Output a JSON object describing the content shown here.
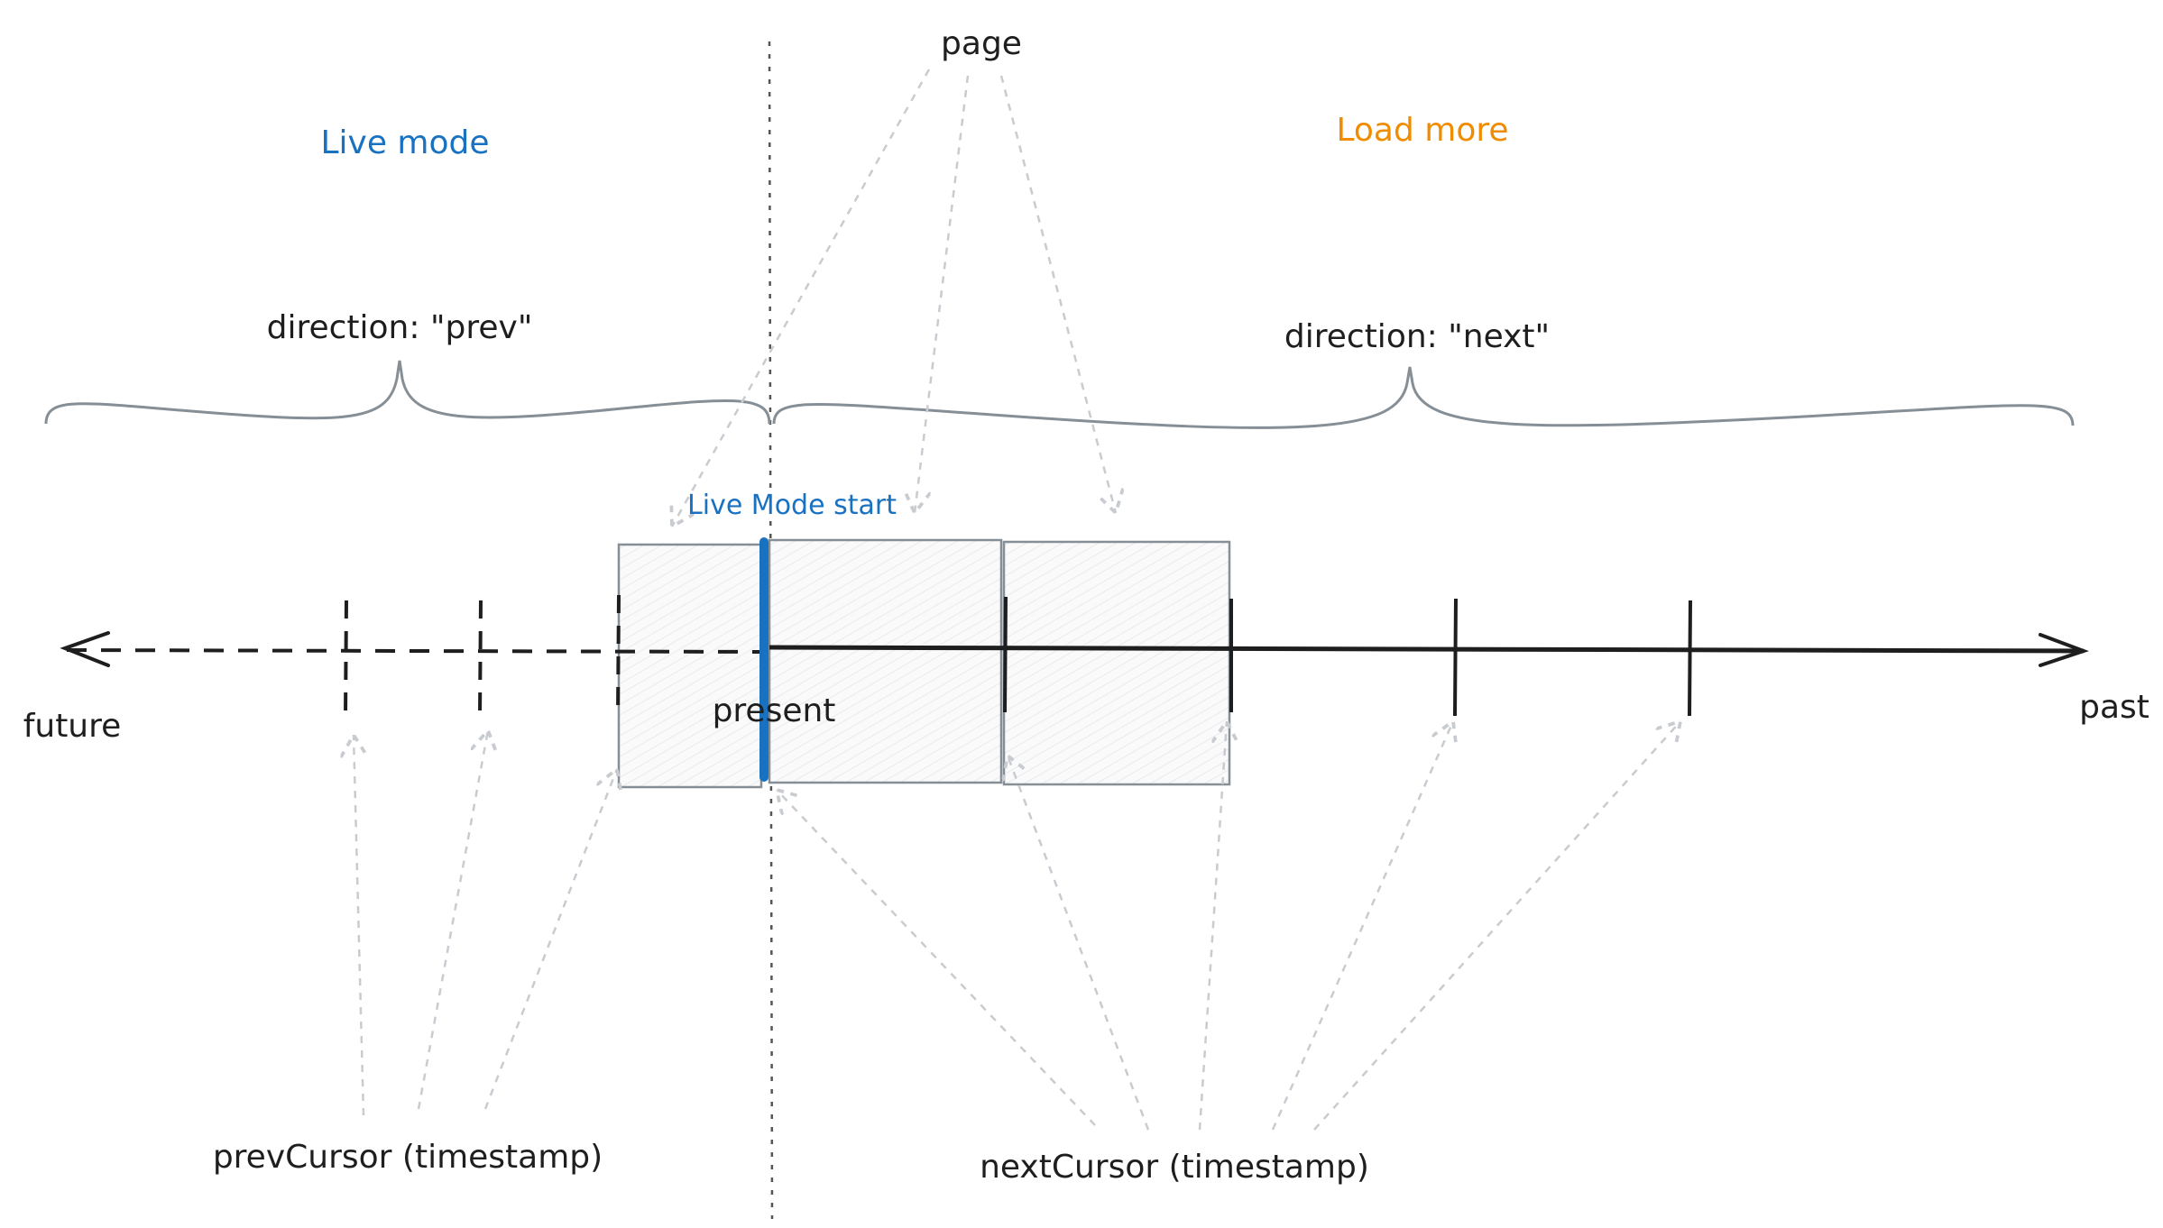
{
  "labels": {
    "page": "page",
    "live_mode": "Live mode",
    "load_more": "Load more",
    "direction_prev": "direction: \"prev\"",
    "direction_next": "direction: \"next\"",
    "live_mode_start": "Live Mode start",
    "present": "present",
    "future": "future",
    "past": "past",
    "prev_cursor": "prevCursor (timestamp)",
    "next_cursor": "nextCursor (timestamp)"
  },
  "colors": {
    "live": "#1971c2",
    "load_more": "#f08c00",
    "axis": "#1e1e1e",
    "box_stroke": "#868e96",
    "hint": "#c8ccd0"
  }
}
